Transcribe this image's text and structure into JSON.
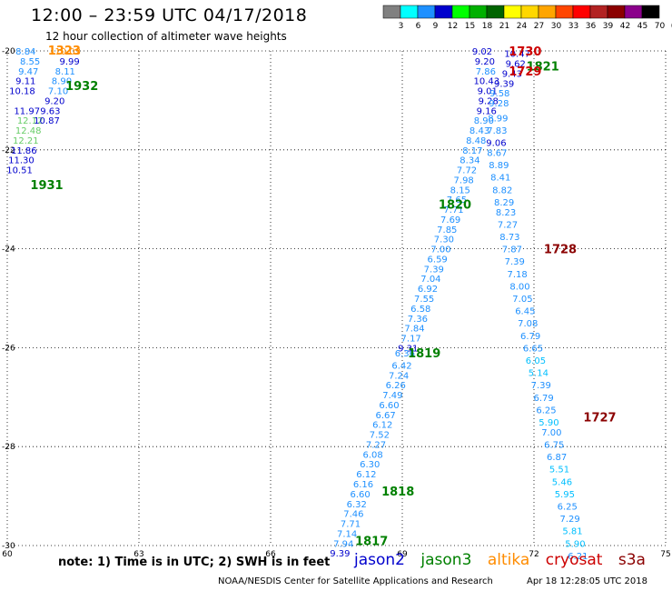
{
  "header": {
    "title": "12:00 – 23:59 UTC 04/17/2018",
    "subtitle": "12 hour collection of altimeter wave heights"
  },
  "colorbar": {
    "labels": [
      "3",
      "6",
      "9",
      "12",
      "15",
      "18",
      "21",
      "24",
      "27",
      "30",
      "33",
      "36",
      "39",
      "42",
      "45",
      "70",
      "(ft)"
    ],
    "colors": [
      "#808080",
      "#00ffff",
      "#1e90ff",
      "#0000cd",
      "#00ff00",
      "#00b000",
      "#006400",
      "#ffff00",
      "#ffd700",
      "#ffa500",
      "#ff4500",
      "#ff0000",
      "#b22222",
      "#8b0000",
      "#8b008b",
      "#000000"
    ]
  },
  "footer": {
    "note": "note:  1) Time is in UTC;  2) SWH is in feet",
    "credit": "NOAA/NESDIS Center for Satellite Applications and Research",
    "timestamp": "Apr 18 12:28:05 UTC 2018"
  },
  "satellites": [
    {
      "name": "jason2",
      "color": "#0000cd"
    },
    {
      "name": "jason3",
      "color": "#008000"
    },
    {
      "name": "altika",
      "color": "#ff8c00"
    },
    {
      "name": "cryosat",
      "color": "#cc0000"
    },
    {
      "name": "s3a",
      "color": "#8b0000"
    }
  ],
  "chart_data": {
    "type": "scatter",
    "title": "12:00 – 23:59 UTC 04/17/2018",
    "xlim": [
      60,
      75
    ],
    "ylim": [
      -30,
      -20
    ],
    "xticks": [
      60,
      63,
      66,
      69,
      72,
      75
    ],
    "yticks": [
      -20,
      -22,
      -24,
      -26,
      -28,
      -30
    ],
    "grid": true,
    "time_labels": [
      {
        "text": "1932",
        "x": 61.7,
        "y": -20.7,
        "color": "#008000"
      },
      {
        "text": "1931",
        "x": 60.9,
        "y": -22.7,
        "color": "#008000"
      },
      {
        "text": "1821",
        "x": 72.2,
        "y": -20.3,
        "color": "#008000"
      },
      {
        "text": "1820",
        "x": 70.2,
        "y": -23.1,
        "color": "#008000"
      },
      {
        "text": "1819",
        "x": 69.5,
        "y": -26.1,
        "color": "#008000"
      },
      {
        "text": "1818",
        "x": 68.9,
        "y": -28.9,
        "color": "#008000"
      },
      {
        "text": "1817",
        "x": 68.3,
        "y": -29.9,
        "color": "#008000"
      },
      {
        "text": "1730",
        "x": 71.8,
        "y": -20.0,
        "color": "#cc0000"
      },
      {
        "text": "1729",
        "x": 71.8,
        "y": -20.4,
        "color": "#cc0000"
      },
      {
        "text": "1728",
        "x": 72.6,
        "y": -24.0,
        "color": "#8b0000"
      },
      {
        "text": "1727",
        "x": 73.5,
        "y": -27.4,
        "color": "#8b0000"
      },
      {
        "text": "1323",
        "x": 61.3,
        "y": -19.98,
        "color": "#ff8c00"
      }
    ],
    "series": [
      {
        "name": "jason3",
        "points": [
          {
            "x": 60.42,
            "y": -20.0,
            "v": "8.84",
            "c": "#1e90ff"
          },
          {
            "x": 60.52,
            "y": -20.2,
            "v": "8.55",
            "c": "#1e90ff"
          },
          {
            "x": 60.48,
            "y": -20.4,
            "v": "9.47",
            "c": "#1e90ff"
          },
          {
            "x": 60.42,
            "y": -20.6,
            "v": "9.11",
            "c": "#0000cd"
          },
          {
            "x": 60.34,
            "y": -20.8,
            "v": "10.18",
            "c": "#0000cd"
          },
          {
            "x": 60.45,
            "y": -21.2,
            "v": "11.97",
            "c": "#0000cd"
          },
          {
            "x": 60.52,
            "y": -21.4,
            "v": "12.12",
            "c": "#66cc66"
          },
          {
            "x": 60.48,
            "y": -21.6,
            "v": "12.48",
            "c": "#66cc66"
          },
          {
            "x": 60.42,
            "y": -21.8,
            "v": "12.21",
            "c": "#66cc66"
          },
          {
            "x": 60.38,
            "y": -22.0,
            "v": "11.86",
            "c": "#0000cd"
          },
          {
            "x": 60.32,
            "y": -22.2,
            "v": "11.30",
            "c": "#0000cd"
          },
          {
            "x": 60.28,
            "y": -22.4,
            "v": "10.51",
            "c": "#0000cd"
          }
        ]
      },
      {
        "name": "altika",
        "points": [
          {
            "x": 61.38,
            "y": -20.0,
            "v": "10.03",
            "c": "#ff8c00"
          },
          {
            "x": 61.42,
            "y": -20.2,
            "v": "9.99",
            "c": "#0000cd"
          },
          {
            "x": 61.32,
            "y": -20.4,
            "v": "8.11",
            "c": "#1e90ff"
          },
          {
            "x": 61.24,
            "y": -20.6,
            "v": "8.90",
            "c": "#1e90ff"
          },
          {
            "x": 61.16,
            "y": -20.8,
            "v": "7.10",
            "c": "#1e90ff"
          },
          {
            "x": 61.08,
            "y": -21.0,
            "v": "9.20",
            "c": "#0000cd"
          },
          {
            "x": 60.98,
            "y": -21.2,
            "v": "9.63",
            "c": "#0000cd"
          },
          {
            "x": 60.9,
            "y": -21.4,
            "v": "10.87",
            "c": "#0000cd"
          }
        ]
      },
      {
        "name": "jason2",
        "points": [
          {
            "x": 70.82,
            "y": -20.0,
            "v": "9.02",
            "c": "#0000cd"
          },
          {
            "x": 70.88,
            "y": -20.2,
            "v": "9.20",
            "c": "#0000cd"
          },
          {
            "x": 70.9,
            "y": -20.4,
            "v": "7.86",
            "c": "#1e90ff"
          },
          {
            "x": 70.92,
            "y": -20.6,
            "v": "10.43",
            "c": "#0000cd"
          },
          {
            "x": 70.94,
            "y": -20.8,
            "v": "9.01",
            "c": "#0000cd"
          },
          {
            "x": 70.96,
            "y": -21.0,
            "v": "9.28",
            "c": "#0000cd"
          },
          {
            "x": 70.92,
            "y": -21.2,
            "v": "9.16",
            "c": "#0000cd"
          },
          {
            "x": 70.86,
            "y": -21.4,
            "v": "8.90",
            "c": "#1e90ff"
          },
          {
            "x": 70.76,
            "y": -21.6,
            "v": "8.43",
            "c": "#1e90ff"
          },
          {
            "x": 70.68,
            "y": -21.8,
            "v": "8.48",
            "c": "#1e90ff"
          },
          {
            "x": 70.6,
            "y": -22.0,
            "v": "8.17",
            "c": "#1e90ff"
          },
          {
            "x": 70.54,
            "y": -22.2,
            "v": "8.34",
            "c": "#1e90ff"
          },
          {
            "x": 70.47,
            "y": -22.4,
            "v": "7.72",
            "c": "#1e90ff"
          },
          {
            "x": 70.4,
            "y": -22.6,
            "v": "7.98",
            "c": "#1e90ff"
          },
          {
            "x": 70.32,
            "y": -22.8,
            "v": "8.15",
            "c": "#1e90ff"
          },
          {
            "x": 70.24,
            "y": -23.0,
            "v": "7.65",
            "c": "#1e90ff"
          },
          {
            "x": 70.17,
            "y": -23.2,
            "v": "7.71",
            "c": "#1e90ff"
          },
          {
            "x": 70.1,
            "y": -23.4,
            "v": "7.69",
            "c": "#1e90ff"
          },
          {
            "x": 70.02,
            "y": -23.6,
            "v": "7.85",
            "c": "#1e90ff"
          },
          {
            "x": 69.95,
            "y": -23.8,
            "v": "7.30",
            "c": "#1e90ff"
          },
          {
            "x": 69.88,
            "y": -24.0,
            "v": "7.00",
            "c": "#1e90ff"
          },
          {
            "x": 69.8,
            "y": -24.2,
            "v": "6.59",
            "c": "#1e90ff"
          },
          {
            "x": 69.72,
            "y": -24.4,
            "v": "7.39",
            "c": "#1e90ff"
          },
          {
            "x": 69.65,
            "y": -24.6,
            "v": "7.04",
            "c": "#1e90ff"
          },
          {
            "x": 69.58,
            "y": -24.8,
            "v": "6.92",
            "c": "#1e90ff"
          },
          {
            "x": 69.5,
            "y": -25.0,
            "v": "7.55",
            "c": "#1e90ff"
          },
          {
            "x": 69.42,
            "y": -25.2,
            "v": "6.58",
            "c": "#1e90ff"
          },
          {
            "x": 69.35,
            "y": -25.4,
            "v": "7.36",
            "c": "#1e90ff"
          },
          {
            "x": 69.28,
            "y": -25.6,
            "v": "7.84",
            "c": "#1e90ff"
          },
          {
            "x": 69.2,
            "y": -25.8,
            "v": "7.17",
            "c": "#1e90ff"
          },
          {
            "x": 69.13,
            "y": -26.0,
            "v": "9.31",
            "c": "#0000cd"
          },
          {
            "x": 69.06,
            "y": -26.1,
            "v": "6.36",
            "c": "#1e90ff"
          },
          {
            "x": 68.99,
            "y": -26.35,
            "v": "6.42",
            "c": "#1e90ff"
          },
          {
            "x": 68.92,
            "y": -26.55,
            "v": "7.24",
            "c": "#1e90ff"
          },
          {
            "x": 68.85,
            "y": -26.75,
            "v": "6.26",
            "c": "#1e90ff"
          },
          {
            "x": 68.78,
            "y": -26.95,
            "v": "7.49",
            "c": "#1e90ff"
          },
          {
            "x": 68.7,
            "y": -27.15,
            "v": "6.60",
            "c": "#1e90ff"
          },
          {
            "x": 68.62,
            "y": -27.35,
            "v": "6.67",
            "c": "#1e90ff"
          },
          {
            "x": 68.55,
            "y": -27.55,
            "v": "6.12",
            "c": "#1e90ff"
          },
          {
            "x": 68.48,
            "y": -27.75,
            "v": "7.52",
            "c": "#1e90ff"
          },
          {
            "x": 68.4,
            "y": -27.95,
            "v": "7.27",
            "c": "#1e90ff"
          },
          {
            "x": 68.33,
            "y": -28.15,
            "v": "6.08",
            "c": "#1e90ff"
          },
          {
            "x": 68.26,
            "y": -28.35,
            "v": "6.30",
            "c": "#1e90ff"
          },
          {
            "x": 68.18,
            "y": -28.55,
            "v": "6.12",
            "c": "#1e90ff"
          },
          {
            "x": 68.11,
            "y": -28.75,
            "v": "6.16",
            "c": "#1e90ff"
          },
          {
            "x": 68.04,
            "y": -28.95,
            "v": "6.60",
            "c": "#1e90ff"
          },
          {
            "x": 67.96,
            "y": -29.15,
            "v": "6.32",
            "c": "#1e90ff"
          },
          {
            "x": 67.89,
            "y": -29.35,
            "v": "7.46",
            "c": "#1e90ff"
          },
          {
            "x": 67.82,
            "y": -29.55,
            "v": "7.71",
            "c": "#1e90ff"
          },
          {
            "x": 67.74,
            "y": -29.75,
            "v": "7.14",
            "c": "#1e90ff"
          },
          {
            "x": 67.66,
            "y": -29.95,
            "v": "7.94",
            "c": "#1e90ff"
          },
          {
            "x": 67.58,
            "y": -30.15,
            "v": "9.39",
            "c": "#0000cd"
          }
        ]
      },
      {
        "name": "s3a",
        "points": [
          {
            "x": 71.62,
            "y": -20.05,
            "v": "10.47",
            "c": "#0000cd"
          },
          {
            "x": 71.58,
            "y": -20.25,
            "v": "9.62",
            "c": "#0000cd"
          },
          {
            "x": 71.5,
            "y": -20.45,
            "v": "9.43",
            "c": "#0000cd"
          },
          {
            "x": 71.32,
            "y": -20.65,
            "v": "9.39",
            "c": "#0000cd"
          },
          {
            "x": 71.22,
            "y": -20.85,
            "v": "9.58",
            "c": "#1e90ff"
          },
          {
            "x": 71.2,
            "y": -21.05,
            "v": "9.28",
            "c": "#1e90ff"
          },
          {
            "x": 71.18,
            "y": -21.35,
            "v": "8.99",
            "c": "#1e90ff"
          },
          {
            "x": 71.16,
            "y": -21.6,
            "v": "7.83",
            "c": "#1e90ff"
          },
          {
            "x": 71.14,
            "y": -21.85,
            "v": "9.06",
            "c": "#0000cd"
          },
          {
            "x": 71.16,
            "y": -22.05,
            "v": "8.67",
            "c": "#1e90ff"
          },
          {
            "x": 71.2,
            "y": -22.3,
            "v": "8.89",
            "c": "#1e90ff"
          },
          {
            "x": 71.24,
            "y": -22.55,
            "v": "8.41",
            "c": "#1e90ff"
          },
          {
            "x": 71.28,
            "y": -22.8,
            "v": "8.82",
            "c": "#1e90ff"
          },
          {
            "x": 71.32,
            "y": -23.05,
            "v": "8.29",
            "c": "#1e90ff"
          },
          {
            "x": 71.36,
            "y": -23.25,
            "v": "8.23",
            "c": "#1e90ff"
          },
          {
            "x": 71.4,
            "y": -23.5,
            "v": "7.27",
            "c": "#1e90ff"
          },
          {
            "x": 71.45,
            "y": -23.75,
            "v": "8.73",
            "c": "#1e90ff"
          },
          {
            "x": 71.5,
            "y": -24.0,
            "v": "7.87",
            "c": "#1e90ff"
          },
          {
            "x": 71.56,
            "y": -24.25,
            "v": "7.39",
            "c": "#1e90ff"
          },
          {
            "x": 71.62,
            "y": -24.5,
            "v": "7.18",
            "c": "#1e90ff"
          },
          {
            "x": 71.68,
            "y": -24.75,
            "v": "8.00",
            "c": "#1e90ff"
          },
          {
            "x": 71.74,
            "y": -25.0,
            "v": "7.05",
            "c": "#1e90ff"
          },
          {
            "x": 71.8,
            "y": -25.25,
            "v": "6.45",
            "c": "#1e90ff"
          },
          {
            "x": 71.86,
            "y": -25.5,
            "v": "7.08",
            "c": "#1e90ff"
          },
          {
            "x": 71.92,
            "y": -25.75,
            "v": "6.79",
            "c": "#1e90ff"
          },
          {
            "x": 71.98,
            "y": -26.0,
            "v": "6.65",
            "c": "#1e90ff"
          },
          {
            "x": 72.04,
            "y": -26.25,
            "v": "6.05",
            "c": "#00bfff"
          },
          {
            "x": 72.1,
            "y": -26.5,
            "v": "5.14",
            "c": "#00bfff"
          },
          {
            "x": 72.16,
            "y": -26.75,
            "v": "7.39",
            "c": "#1e90ff"
          },
          {
            "x": 72.22,
            "y": -27.0,
            "v": "6.79",
            "c": "#1e90ff"
          },
          {
            "x": 72.28,
            "y": -27.25,
            "v": "6.25",
            "c": "#1e90ff"
          },
          {
            "x": 72.34,
            "y": -27.5,
            "v": "5.90",
            "c": "#00bfff"
          },
          {
            "x": 72.4,
            "y": -27.7,
            "v": "7.00",
            "c": "#1e90ff"
          },
          {
            "x": 72.46,
            "y": -27.95,
            "v": "6.75",
            "c": "#1e90ff"
          },
          {
            "x": 72.52,
            "y": -28.2,
            "v": "6.87",
            "c": "#1e90ff"
          },
          {
            "x": 72.58,
            "y": -28.45,
            "v": "5.51",
            "c": "#00bfff"
          },
          {
            "x": 72.64,
            "y": -28.7,
            "v": "5.46",
            "c": "#00bfff"
          },
          {
            "x": 72.7,
            "y": -28.95,
            "v": "5.95",
            "c": "#00bfff"
          },
          {
            "x": 72.76,
            "y": -29.2,
            "v": "6.25",
            "c": "#1e90ff"
          },
          {
            "x": 72.82,
            "y": -29.45,
            "v": "7.29",
            "c": "#1e90ff"
          },
          {
            "x": 72.88,
            "y": -29.7,
            "v": "5.81",
            "c": "#00bfff"
          },
          {
            "x": 72.94,
            "y": -29.95,
            "v": "5.90",
            "c": "#00bfff"
          },
          {
            "x": 73.0,
            "y": -30.2,
            "v": "6.21",
            "c": "#1e90ff"
          }
        ]
      }
    ]
  }
}
